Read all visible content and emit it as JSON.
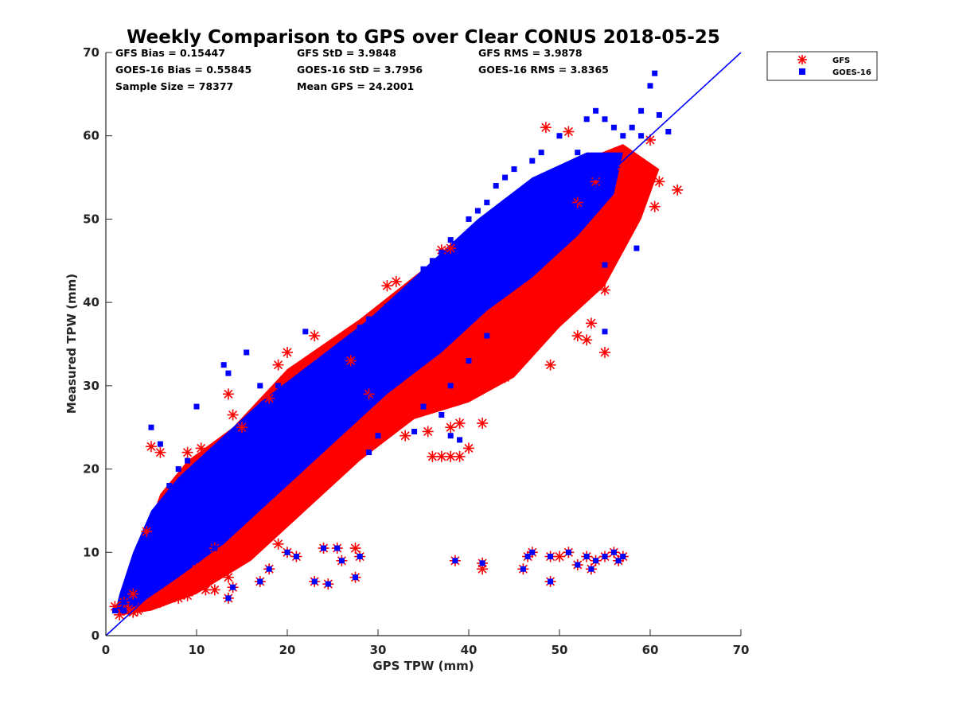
{
  "chart_data": {
    "type": "scatter",
    "title": "Weekly Comparison to GPS over Clear CONUS 2018-05-25",
    "xlabel": "GPS TPW (mm)",
    "ylabel": "Measured TPW (mm)",
    "xlim": [
      0,
      70
    ],
    "ylim": [
      0,
      70
    ],
    "xticks": [
      "0",
      "10",
      "20",
      "30",
      "40",
      "50",
      "60",
      "70"
    ],
    "yticks": [
      "0",
      "10",
      "20",
      "30",
      "40",
      "50",
      "60",
      "70"
    ],
    "grid": false,
    "legend_position": "outside top-right",
    "reference_line": {
      "name": "1:1 line",
      "x": [
        0,
        70
      ],
      "y": [
        0,
        70
      ],
      "color": "#0000ff"
    },
    "stats": [
      [
        "GFS Bias = 0.15447",
        "GFS StD = 3.9848",
        "GFS RMS = 3.9878"
      ],
      [
        "GOES-16 Bias = 0.55845",
        "GOES-16 StD = 3.7956",
        "GOES-16 RMS = 3.8365"
      ],
      [
        "Sample Size = 78377",
        "Mean GPS = 24.2001"
      ]
    ],
    "series": [
      {
        "name": "GFS",
        "marker": "asterisk",
        "color": "#ff0000",
        "points": [
          [
            1,
            3.5
          ],
          [
            1.5,
            2.5
          ],
          [
            2,
            4
          ],
          [
            3,
            5
          ],
          [
            4.5,
            12.5
          ],
          [
            5,
            22.7
          ],
          [
            6,
            22
          ],
          [
            9,
            22
          ],
          [
            10.5,
            22.5
          ],
          [
            13.5,
            29
          ],
          [
            14,
            26.5
          ],
          [
            15,
            25
          ],
          [
            18,
            28.5
          ],
          [
            19,
            32.5
          ],
          [
            20,
            34
          ],
          [
            23,
            36
          ],
          [
            27,
            33
          ],
          [
            31,
            42
          ],
          [
            32,
            42.5
          ],
          [
            33,
            24
          ],
          [
            35.5,
            24.5
          ],
          [
            36,
            21.5
          ],
          [
            37,
            21.5
          ],
          [
            38,
            21.5
          ],
          [
            39,
            21.5
          ],
          [
            40,
            22.5
          ],
          [
            41.5,
            25.5
          ],
          [
            38,
            25
          ],
          [
            39,
            25.5
          ],
          [
            37,
            46.3
          ],
          [
            38,
            46.5
          ],
          [
            44,
            31
          ],
          [
            46.5,
            38.5
          ],
          [
            47,
            34.5
          ],
          [
            48.5,
            61
          ],
          [
            49,
            32.5
          ],
          [
            50,
            38
          ],
          [
            51,
            60.5
          ],
          [
            52,
            36
          ],
          [
            53,
            35.5
          ],
          [
            53.5,
            37.5
          ],
          [
            55,
            34
          ],
          [
            55,
            41.5
          ],
          [
            55,
            49
          ],
          [
            57,
            56
          ],
          [
            58,
            51
          ],
          [
            59,
            55
          ],
          [
            60,
            55.5
          ],
          [
            60,
            59.5
          ],
          [
            60.5,
            51.5
          ],
          [
            61,
            54.5
          ],
          [
            63,
            53.5
          ],
          [
            54,
            54.5
          ],
          [
            52,
            52
          ],
          [
            12,
            10.5
          ],
          [
            13.5,
            7
          ],
          [
            13.5,
            4.5
          ],
          [
            14,
            5.8
          ],
          [
            17,
            6.5
          ],
          [
            18,
            8
          ],
          [
            19,
            11
          ],
          [
            20,
            10
          ],
          [
            21,
            9.5
          ],
          [
            23,
            6.5
          ],
          [
            24,
            10.5
          ],
          [
            24.5,
            6.2
          ],
          [
            25.5,
            10.5
          ],
          [
            26,
            9
          ],
          [
            27.5,
            7
          ],
          [
            28,
            9.5
          ],
          [
            27.5,
            10.5
          ],
          [
            38.5,
            9
          ],
          [
            41.5,
            8
          ],
          [
            41.5,
            8.7
          ],
          [
            46,
            8
          ],
          [
            46.5,
            9.5
          ],
          [
            47,
            10
          ],
          [
            49,
            6.5
          ],
          [
            49,
            9.5
          ],
          [
            50,
            9.5
          ],
          [
            51,
            10
          ],
          [
            52,
            8.5
          ],
          [
            53,
            9.5
          ],
          [
            53.5,
            8
          ],
          [
            54,
            9
          ],
          [
            55,
            9.5
          ],
          [
            56,
            10
          ],
          [
            56.5,
            9
          ],
          [
            57,
            9.5
          ],
          [
            29,
            29
          ],
          [
            30,
            27
          ],
          [
            35,
            30
          ],
          [
            40,
            31
          ],
          [
            42,
            31
          ],
          [
            45,
            35
          ],
          [
            47,
            40
          ],
          [
            50,
            42
          ],
          [
            10,
            8
          ],
          [
            12,
            9
          ],
          [
            15,
            11
          ],
          [
            20,
            15
          ],
          [
            25,
            20
          ],
          [
            3,
            2.8
          ],
          [
            2.5,
            3.2
          ],
          [
            3.5,
            3
          ],
          [
            4,
            3.4
          ],
          [
            6,
            4
          ],
          [
            8,
            4.5
          ],
          [
            9,
            4.8
          ],
          [
            11,
            5.5
          ],
          [
            12,
            5.5
          ]
        ]
      },
      {
        "name": "GOES-16",
        "marker": "square",
        "color": "#0000ff",
        "points": [
          [
            1,
            3
          ],
          [
            2,
            4
          ],
          [
            5,
            25
          ],
          [
            6,
            23
          ],
          [
            7,
            18
          ],
          [
            8,
            20
          ],
          [
            10,
            27.5
          ],
          [
            13,
            32.5
          ],
          [
            13.5,
            31.5
          ],
          [
            15.5,
            34
          ],
          [
            17,
            30
          ],
          [
            19,
            30
          ],
          [
            22,
            36.5
          ],
          [
            25,
            33
          ],
          [
            27,
            35.5
          ],
          [
            28,
            37
          ],
          [
            29,
            38
          ],
          [
            31,
            39.5
          ],
          [
            32,
            40
          ],
          [
            34,
            42
          ],
          [
            35,
            44
          ],
          [
            36,
            45
          ],
          [
            37,
            46
          ],
          [
            38,
            47.5
          ],
          [
            40,
            50
          ],
          [
            41,
            51
          ],
          [
            42,
            52
          ],
          [
            43,
            54
          ],
          [
            44,
            55
          ],
          [
            45,
            56
          ],
          [
            47,
            57
          ],
          [
            48,
            58
          ],
          [
            50,
            60
          ],
          [
            52,
            58
          ],
          [
            53,
            62
          ],
          [
            54,
            63
          ],
          [
            55,
            62
          ],
          [
            56,
            61
          ],
          [
            57,
            60
          ],
          [
            58,
            61
          ],
          [
            59,
            60
          ],
          [
            60,
            66
          ],
          [
            60.5,
            67.5
          ],
          [
            61,
            62.5
          ],
          [
            59,
            63
          ],
          [
            58.5,
            46.5
          ],
          [
            62,
            60.5
          ],
          [
            55,
            44.5
          ],
          [
            55,
            36.5
          ],
          [
            45,
            42
          ],
          [
            42,
            36
          ],
          [
            40,
            33
          ],
          [
            38,
            30
          ],
          [
            35,
            27.5
          ],
          [
            37,
            26.5
          ],
          [
            38,
            24
          ],
          [
            39,
            23.5
          ],
          [
            29,
            22
          ],
          [
            30,
            24
          ],
          [
            34,
            24.5
          ],
          [
            9,
            21
          ],
          [
            10,
            19
          ],
          [
            12,
            16
          ],
          [
            5,
            12
          ],
          [
            3,
            8
          ],
          [
            13.5,
            4.5
          ],
          [
            14,
            5.8
          ],
          [
            12,
            10.5
          ],
          [
            17,
            6.5
          ],
          [
            18,
            8
          ],
          [
            20,
            10
          ],
          [
            21,
            9.5
          ],
          [
            23,
            6.5
          ],
          [
            24,
            10.5
          ],
          [
            24.5,
            6.2
          ],
          [
            25.5,
            10.5
          ],
          [
            26,
            9
          ],
          [
            27.5,
            7
          ],
          [
            28,
            9.5
          ],
          [
            38.5,
            9
          ],
          [
            41.5,
            8.7
          ],
          [
            46,
            8
          ],
          [
            46.5,
            9.5
          ],
          [
            47,
            10
          ],
          [
            49,
            6.5
          ],
          [
            49,
            9.5
          ],
          [
            51,
            10
          ],
          [
            52,
            8.5
          ],
          [
            53,
            9.5
          ],
          [
            53.5,
            8
          ],
          [
            54,
            9
          ],
          [
            55,
            9.5
          ],
          [
            56,
            10
          ],
          [
            56.5,
            9
          ],
          [
            57,
            9.5
          ],
          [
            6,
            6
          ],
          [
            8,
            8
          ],
          [
            10,
            11
          ],
          [
            12,
            13
          ],
          [
            14,
            15
          ],
          [
            16,
            17
          ],
          [
            18,
            19
          ],
          [
            20,
            21
          ],
          [
            22,
            23
          ],
          [
            24,
            25
          ],
          [
            26,
            27
          ],
          [
            28,
            29
          ],
          [
            30,
            31
          ],
          [
            32,
            33
          ],
          [
            34,
            35
          ],
          [
            36,
            37
          ],
          [
            38,
            39
          ],
          [
            40,
            41
          ],
          [
            42,
            43
          ],
          [
            44,
            45
          ],
          [
            46,
            47
          ],
          [
            48,
            49
          ],
          [
            50,
            51
          ],
          [
            52,
            53
          ],
          [
            54,
            55
          ],
          [
            2,
            3
          ],
          [
            3,
            4
          ],
          [
            4,
            5
          ],
          [
            7,
            8
          ],
          [
            9,
            10
          ],
          [
            11,
            12
          ],
          [
            13,
            14
          ]
        ]
      }
    ]
  }
}
